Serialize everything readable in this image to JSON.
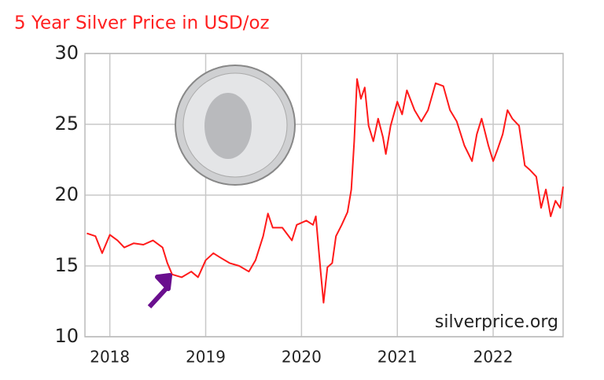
{
  "chart_data": {
    "type": "line",
    "title": "5 Year Silver Price in USD/oz",
    "annotation": "silverprice.org",
    "x": [
      2017.76,
      2017.85,
      2017.92,
      2018.0,
      2018.08,
      2018.15,
      2018.25,
      2018.35,
      2018.45,
      2018.55,
      2018.6,
      2018.65,
      2018.75,
      2018.85,
      2018.92,
      2019.0,
      2019.08,
      2019.15,
      2019.25,
      2019.35,
      2019.45,
      2019.52,
      2019.6,
      2019.65,
      2019.7,
      2019.8,
      2019.9,
      2019.95,
      2020.05,
      2020.12,
      2020.15,
      2020.2,
      2020.23,
      2020.27,
      2020.32,
      2020.36,
      2020.42,
      2020.48,
      2020.52,
      2020.55,
      2020.58,
      2020.62,
      2020.66,
      2020.7,
      2020.75,
      2020.8,
      2020.85,
      2020.88,
      2020.93,
      2021.0,
      2021.05,
      2021.1,
      2021.18,
      2021.25,
      2021.32,
      2021.4,
      2021.48,
      2021.55,
      2021.62,
      2021.7,
      2021.78,
      2021.83,
      2021.88,
      2021.95,
      2022.0,
      2022.05,
      2022.1,
      2022.15,
      2022.2,
      2022.27,
      2022.33,
      2022.38,
      2022.45,
      2022.5,
      2022.55,
      2022.6,
      2022.65,
      2022.7,
      2022.73
    ],
    "values": [
      17.3,
      17.1,
      15.9,
      17.2,
      16.8,
      16.3,
      16.6,
      16.5,
      16.8,
      16.3,
      15.2,
      14.4,
      14.2,
      14.6,
      14.2,
      15.4,
      15.9,
      15.6,
      15.2,
      15.0,
      14.6,
      15.4,
      17.1,
      18.7,
      17.7,
      17.7,
      16.8,
      17.9,
      18.2,
      17.9,
      18.5,
      14.6,
      12.4,
      14.9,
      15.2,
      17.1,
      17.9,
      18.8,
      20.4,
      23.8,
      28.2,
      26.8,
      27.6,
      24.9,
      23.8,
      25.4,
      24.1,
      22.9,
      24.9,
      26.6,
      25.7,
      27.4,
      26.0,
      25.2,
      26.0,
      27.9,
      27.7,
      26.0,
      25.2,
      23.5,
      22.4,
      24.3,
      25.4,
      23.5,
      22.4,
      23.3,
      24.3,
      26.0,
      25.4,
      24.9,
      22.1,
      21.8,
      21.3,
      19.1,
      20.4,
      18.5,
      19.6,
      19.1,
      20.6
    ],
    "color": "#ff1a1a",
    "xlim": [
      2017.74,
      2022.73
    ],
    "xticks": [
      2018,
      2019,
      2020,
      2021,
      2022
    ],
    "ylim": [
      10,
      30
    ],
    "yticks": [
      10,
      15,
      20,
      25,
      30
    ],
    "grid": true
  }
}
